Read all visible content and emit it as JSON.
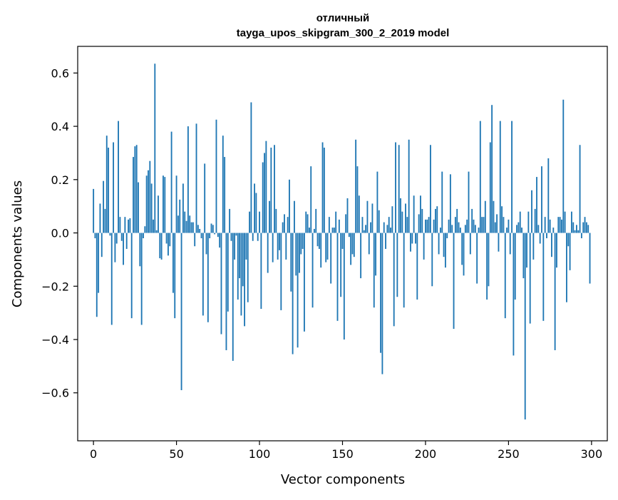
{
  "chart_data": {
    "type": "bar",
    "title_line1": "отличный",
    "title_line2": "tayga_upos_skipgram_300_2_2019 model",
    "xlabel": "Vector components",
    "ylabel": "Components values",
    "xlim": [
      -9.5,
      309.5
    ],
    "ylim": [
      -0.78,
      0.7
    ],
    "x_ticks": [
      0,
      50,
      100,
      150,
      200,
      250,
      300
    ],
    "x_tick_labels": [
      "0",
      "50",
      "100",
      "150",
      "200",
      "250",
      "300"
    ],
    "y_ticks": [
      -0.6,
      -0.4,
      -0.2,
      0.0,
      0.2,
      0.4,
      0.6
    ],
    "y_tick_labels": [
      "−0.6",
      "−0.4",
      "−0.2",
      "0.0",
      "0.2",
      "0.4",
      "0.6"
    ],
    "bar_color": "#1f77b4",
    "grid": false,
    "x": [
      0,
      1,
      2,
      3,
      4,
      5,
      6,
      7,
      8,
      9,
      10,
      11,
      12,
      13,
      14,
      15,
      16,
      17,
      18,
      19,
      20,
      21,
      22,
      23,
      24,
      25,
      26,
      27,
      28,
      29,
      30,
      31,
      32,
      33,
      34,
      35,
      36,
      37,
      38,
      39,
      40,
      41,
      42,
      43,
      44,
      45,
      46,
      47,
      48,
      49,
      50,
      51,
      52,
      53,
      54,
      55,
      56,
      57,
      58,
      59,
      60,
      61,
      62,
      63,
      64,
      65,
      66,
      67,
      68,
      69,
      70,
      71,
      72,
      73,
      74,
      75,
      76,
      77,
      78,
      79,
      80,
      81,
      82,
      83,
      84,
      85,
      86,
      87,
      88,
      89,
      90,
      91,
      92,
      93,
      94,
      95,
      96,
      97,
      98,
      99,
      100,
      101,
      102,
      103,
      104,
      105,
      106,
      107,
      108,
      109,
      110,
      111,
      112,
      113,
      114,
      115,
      116,
      117,
      118,
      119,
      120,
      121,
      122,
      123,
      124,
      125,
      126,
      127,
      128,
      129,
      130,
      131,
      132,
      133,
      134,
      135,
      136,
      137,
      138,
      139,
      140,
      141,
      142,
      143,
      144,
      145,
      146,
      147,
      148,
      149,
      150,
      151,
      152,
      153,
      154,
      155,
      156,
      157,
      158,
      159,
      160,
      161,
      162,
      163,
      164,
      165,
      166,
      167,
      168,
      169,
      170,
      171,
      172,
      173,
      174,
      175,
      176,
      177,
      178,
      179,
      180,
      181,
      182,
      183,
      184,
      185,
      186,
      187,
      188,
      189,
      190,
      191,
      192,
      193,
      194,
      195,
      196,
      197,
      198,
      199,
      200,
      201,
      202,
      203,
      204,
      205,
      206,
      207,
      208,
      209,
      210,
      211,
      212,
      213,
      214,
      215,
      216,
      217,
      218,
      219,
      220,
      221,
      222,
      223,
      224,
      225,
      226,
      227,
      228,
      229,
      230,
      231,
      232,
      233,
      234,
      235,
      236,
      237,
      238,
      239,
      240,
      241,
      242,
      243,
      244,
      245,
      246,
      247,
      248,
      249,
      250,
      251,
      252,
      253,
      254,
      255,
      256,
      257,
      258,
      259,
      260,
      261,
      262,
      263,
      264,
      265,
      266,
      267,
      268,
      269,
      270,
      271,
      272,
      273,
      274,
      275,
      276,
      277,
      278,
      279,
      280,
      281,
      282,
      283,
      284,
      285,
      286,
      287,
      288,
      289,
      290,
      291,
      292,
      293,
      294,
      295,
      296,
      297,
      298,
      299
    ],
    "values": [
      0.165,
      -0.02,
      -0.315,
      -0.225,
      0.11,
      -0.09,
      0.195,
      0.09,
      0.365,
      0.32,
      -0.01,
      -0.345,
      0.34,
      -0.11,
      -0.04,
      0.42,
      0.06,
      -0.03,
      -0.12,
      0.06,
      -0.06,
      0.05,
      0.055,
      -0.32,
      0.285,
      0.325,
      0.33,
      0.19,
      -0.125,
      -0.345,
      -0.02,
      0.025,
      0.215,
      0.235,
      0.27,
      0.185,
      0.05,
      0.635,
      0.01,
      0.14,
      -0.095,
      -0.1,
      0.215,
      0.21,
      -0.04,
      -0.085,
      -0.05,
      0.38,
      -0.225,
      -0.32,
      0.215,
      0.065,
      0.125,
      -0.59,
      0.185,
      0.08,
      0.045,
      0.4,
      0.065,
      0.04,
      0.04,
      -0.05,
      0.41,
      0.03,
      0.015,
      -0.02,
      -0.31,
      0.26,
      -0.08,
      -0.335,
      -0.02,
      0.035,
      0.03,
      -0.005,
      0.425,
      -0.015,
      -0.055,
      -0.38,
      0.365,
      0.285,
      -0.44,
      -0.295,
      0.09,
      -0.03,
      -0.48,
      -0.1,
      -0.01,
      -0.25,
      -0.17,
      -0.31,
      -0.2,
      -0.35,
      -0.1,
      -0.26,
      0.08,
      0.49,
      -0.03,
      0.185,
      0.15,
      -0.03,
      0.08,
      -0.285,
      0.265,
      0.3,
      0.345,
      -0.15,
      0.12,
      0.32,
      -0.11,
      0.33,
      0.09,
      -0.1,
      -0.065,
      -0.29,
      0.04,
      0.07,
      -0.1,
      0.06,
      0.2,
      -0.22,
      -0.455,
      0.12,
      -0.16,
      -0.43,
      -0.15,
      -0.08,
      -0.06,
      -0.37,
      0.08,
      0.07,
      0.02,
      0.25,
      -0.28,
      0.015,
      0.09,
      -0.05,
      -0.06,
      -0.13,
      0.34,
      0.32,
      -0.11,
      -0.1,
      0.06,
      -0.19,
      0.02,
      0.02,
      0.08,
      -0.33,
      0.05,
      -0.24,
      -0.06,
      -0.4,
      0.07,
      0.13,
      -0.015,
      -0.12,
      -0.08,
      -0.09,
      0.35,
      0.25,
      0.14,
      -0.17,
      0.06,
      0.01,
      0.03,
      0.12,
      -0.08,
      0.04,
      0.11,
      -0.28,
      -0.16,
      0.23,
      0.085,
      -0.45,
      -0.53,
      0.04,
      -0.06,
      0.03,
      0.06,
      0.02,
      0.1,
      -0.35,
      0.34,
      -0.24,
      0.33,
      0.13,
      0.08,
      -0.28,
      0.11,
      0.06,
      0.35,
      -0.07,
      -0.04,
      0.14,
      -0.04,
      -0.25,
      0.07,
      0.14,
      0.09,
      -0.1,
      0.05,
      0.05,
      0.06,
      0.33,
      -0.2,
      0.05,
      0.09,
      0.1,
      -0.08,
      0.02,
      0.23,
      -0.09,
      -0.13,
      -0.02,
      0.05,
      0.22,
      0.03,
      -0.36,
      0.06,
      0.09,
      0.04,
      0.02,
      -0.12,
      -0.16,
      0.03,
      0.05,
      0.23,
      -0.08,
      0.09,
      0.05,
      0.03,
      -0.19,
      0.02,
      0.42,
      0.06,
      0.06,
      0.12,
      -0.25,
      -0.2,
      0.34,
      0.48,
      0.12,
      0.04,
      0.07,
      -0.07,
      0.42,
      0.1,
      0.06,
      -0.32,
      0.02,
      0.05,
      -0.08,
      0.42,
      -0.46,
      -0.25,
      0.03,
      0.04,
      0.08,
      0.02,
      -0.17,
      -0.7,
      -0.13,
      0.08,
      -0.34,
      0.16,
      -0.1,
      0.09,
      0.21,
      0.03,
      -0.04,
      0.25,
      -0.33,
      0.06,
      -0.02,
      0.28,
      0.05,
      -0.09,
      0.02,
      -0.44,
      -0.13,
      0.06,
      0.06,
      0.05,
      0.5,
      0.08,
      -0.26,
      -0.05,
      -0.14,
      0.08,
      0.04,
      0.01,
      0.03,
      0.01,
      0.33,
      -0.02,
      0.04,
      0.06,
      0.04,
      0.03,
      -0.19
    ]
  }
}
